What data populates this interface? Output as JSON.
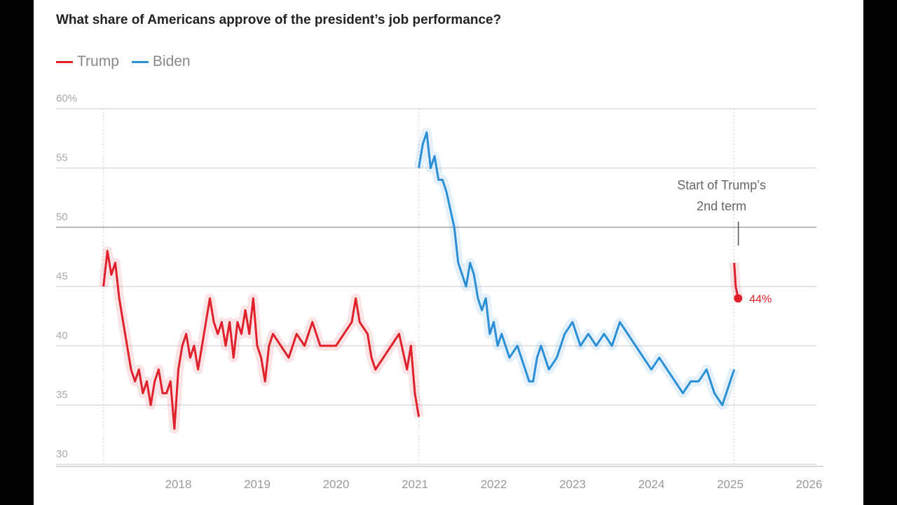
{
  "chart_data": {
    "type": "line",
    "title": "What share of Americans approve of the president’s job performance?",
    "ylim": [
      30,
      60
    ],
    "y_ticks": [
      "60%",
      "55",
      "50",
      "45",
      "40",
      "35",
      "30"
    ],
    "x_ticks": [
      "2018",
      "2019",
      "2020",
      "2021",
      "2022",
      "2023",
      "2024",
      "2025",
      "2026"
    ],
    "grid": true,
    "legend_placement": "top-left",
    "annotation": {
      "text_line1": "Start of Trump’s",
      "text_line2": "2nd term",
      "x": 2025.05
    },
    "end_label": "44%",
    "series": [
      {
        "name": "Trump",
        "color": "#e0202a",
        "x": [
          2017.05,
          2017.1,
          2017.15,
          2017.2,
          2017.25,
          2017.3,
          2017.35,
          2017.4,
          2017.45,
          2017.5,
          2017.55,
          2017.6,
          2017.65,
          2017.7,
          2017.75,
          2017.8,
          2017.85,
          2017.9,
          2017.95,
          2018.0,
          2018.05,
          2018.1,
          2018.15,
          2018.2,
          2018.25,
          2018.3,
          2018.4,
          2018.45,
          2018.5,
          2018.55,
          2018.6,
          2018.65,
          2018.7,
          2018.75,
          2018.8,
          2018.85,
          2018.9,
          2018.95,
          2019.0,
          2019.05,
          2019.1,
          2019.15,
          2019.2,
          2019.3,
          2019.4,
          2019.5,
          2019.6,
          2019.7,
          2019.8,
          2019.9,
          2020.0,
          2020.1,
          2020.2,
          2020.25,
          2020.3,
          2020.4,
          2020.45,
          2020.5,
          2020.6,
          2020.7,
          2020.8,
          2020.9,
          2020.95,
          2021.0,
          2021.05
        ],
        "values": [
          45,
          48,
          46,
          47,
          44,
          42,
          40,
          38,
          37,
          38,
          36,
          37,
          35,
          37,
          38,
          36,
          36,
          37,
          33,
          38,
          40,
          41,
          39,
          40,
          38,
          40,
          44,
          42,
          41,
          42,
          40,
          42,
          39,
          42,
          41,
          43,
          41,
          44,
          40,
          39,
          37,
          40,
          41,
          40,
          39,
          41,
          40,
          42,
          40,
          40,
          40,
          41,
          42,
          44,
          42,
          41,
          39,
          38,
          39,
          40,
          41,
          38,
          40,
          36,
          34
        ]
      },
      {
        "name": "Biden",
        "color": "#2b8fd6",
        "x": [
          2021.05,
          2021.1,
          2021.15,
          2021.2,
          2021.25,
          2021.3,
          2021.35,
          2021.4,
          2021.5,
          2021.55,
          2021.6,
          2021.65,
          2021.7,
          2021.75,
          2021.8,
          2021.85,
          2021.9,
          2021.95,
          2022.0,
          2022.05,
          2022.1,
          2022.2,
          2022.3,
          2022.4,
          2022.45,
          2022.5,
          2022.55,
          2022.6,
          2022.65,
          2022.7,
          2022.8,
          2022.9,
          2023.0,
          2023.1,
          2023.2,
          2023.3,
          2023.4,
          2023.5,
          2023.6,
          2023.7,
          2023.8,
          2023.9,
          2024.0,
          2024.1,
          2024.2,
          2024.3,
          2024.4,
          2024.5,
          2024.6,
          2024.7,
          2024.8,
          2024.9,
          2025.0,
          2025.05
        ],
        "values": [
          55,
          57,
          58,
          55,
          56,
          54,
          54,
          53,
          50,
          47,
          46,
          45,
          47,
          46,
          44,
          43,
          44,
          41,
          42,
          40,
          41,
          39,
          40,
          38,
          37,
          37,
          39,
          40,
          39,
          38,
          39,
          41,
          42,
          40,
          41,
          40,
          41,
          40,
          42,
          41,
          40,
          39,
          38,
          39,
          38,
          37,
          36,
          37,
          37,
          38,
          36,
          35,
          37,
          38
        ]
      },
      {
        "name": "Trump 2nd term",
        "color": "#e0202a",
        "x": [
          2025.05,
          2025.07,
          2025.1
        ],
        "values": [
          47,
          45,
          44
        ]
      }
    ]
  }
}
